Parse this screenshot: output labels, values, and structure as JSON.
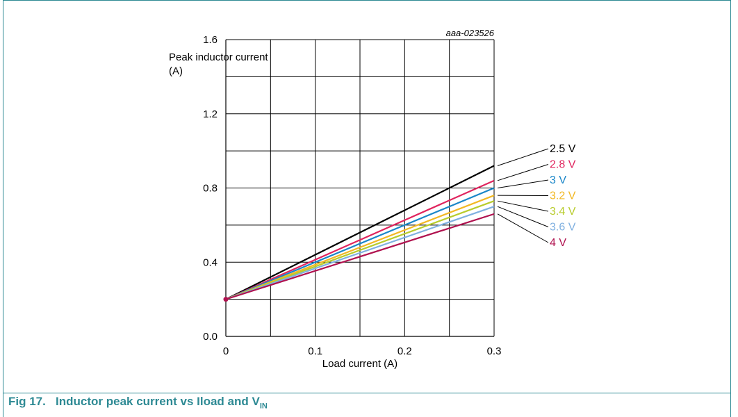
{
  "figure": {
    "id": "aaa-023526",
    "caption_prefix": "Fig 17.",
    "caption_text": "Inductor peak current vs Iload and V",
    "caption_sub": "IN"
  },
  "chart_data": {
    "type": "line",
    "title": "",
    "ylabel_line1": "Peak inductor current",
    "ylabel_line2": "(A)",
    "xlabel": "Load current (A)",
    "xlim": [
      0,
      0.3
    ],
    "ylim": [
      0,
      1.6
    ],
    "x_ticks": [
      "0",
      "0.1",
      "0.2",
      "0.3"
    ],
    "y_ticks": [
      "0.0",
      "0.4",
      "0.8",
      "1.2",
      "1.6"
    ],
    "grid": true,
    "legend_placement": "right",
    "series": [
      {
        "name": "2.5 V",
        "color": "#000000",
        "x": [
          0,
          0.3
        ],
        "y": [
          0.2,
          0.92
        ]
      },
      {
        "name": "2.8 V",
        "color": "#e0245e",
        "x": [
          0,
          0.3
        ],
        "y": [
          0.2,
          0.84
        ]
      },
      {
        "name": "3 V",
        "color": "#1a86c8",
        "x": [
          0,
          0.3
        ],
        "y": [
          0.2,
          0.8
        ]
      },
      {
        "name": "3.2 V",
        "color": "#f2b824",
        "x": [
          0,
          0.3
        ],
        "y": [
          0.2,
          0.76
        ]
      },
      {
        "name": "3.4 V",
        "color": "#b8cc2c",
        "x": [
          0,
          0.3
        ],
        "y": [
          0.2,
          0.73
        ]
      },
      {
        "name": "3.6 V",
        "color": "#7fb0e0",
        "x": [
          0,
          0.3
        ],
        "y": [
          0.2,
          0.7
        ]
      },
      {
        "name": "4 V",
        "color": "#b0124f",
        "x": [
          0,
          0.3
        ],
        "y": [
          0.2,
          0.66
        ]
      }
    ]
  }
}
